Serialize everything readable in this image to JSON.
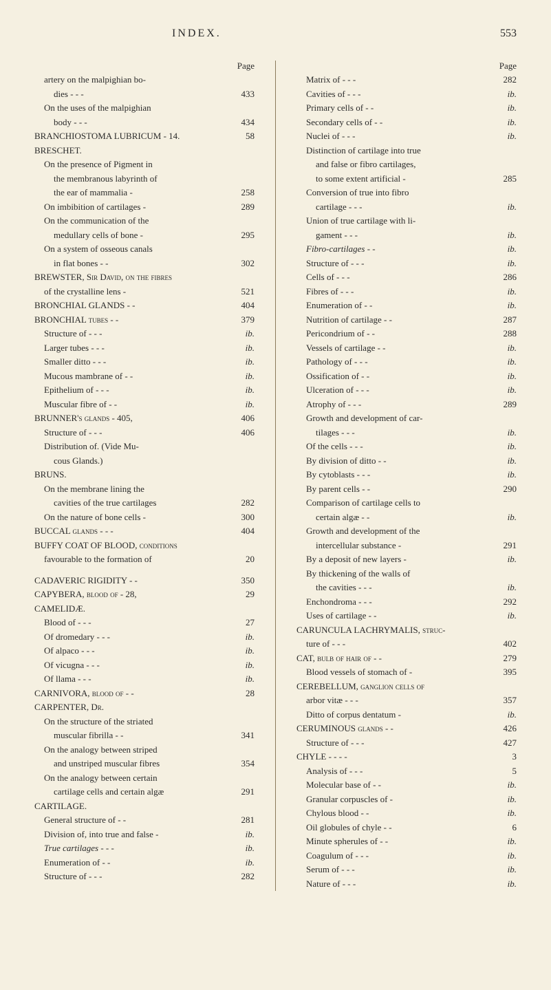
{
  "page_number": "553",
  "header_title": "INDEX.",
  "columns": {
    "left": {
      "page_label": "Page",
      "entries": [
        {
          "text": "artery on the malpighian bo-",
          "page": "",
          "indent": 1,
          "italic": false
        },
        {
          "text": "dies - - -",
          "page": "433",
          "indent": 2,
          "italic": false
        },
        {
          "text": "On the uses of the malpighian",
          "page": "",
          "indent": 1,
          "italic": false
        },
        {
          "text": "body - - -",
          "page": "434",
          "indent": 2,
          "italic": false
        },
        {
          "text": "BRANCHIOSTOMA LUBRICUM - 14.",
          "page": "58",
          "indent": 0,
          "smallcaps": true
        },
        {
          "text": "BRESCHET.",
          "page": "",
          "indent": 0,
          "smallcaps": true
        },
        {
          "text": "On the presence of Pigment in",
          "page": "",
          "indent": 1,
          "italic": false
        },
        {
          "text": "the membranous labyrinth of",
          "page": "",
          "indent": 2,
          "italic": false
        },
        {
          "text": "the ear of mammalia -",
          "page": "258",
          "indent": 2,
          "italic": false
        },
        {
          "text": "On imbibition of cartilages -",
          "page": "289",
          "indent": 1,
          "italic": false
        },
        {
          "text": "On the communication of the",
          "page": "",
          "indent": 1,
          "italic": false
        },
        {
          "text": "medullary cells of bone -",
          "page": "295",
          "indent": 2,
          "italic": false
        },
        {
          "text": "On a system of osseous canals",
          "page": "",
          "indent": 1,
          "italic": false
        },
        {
          "text": "in flat bones - -",
          "page": "302",
          "indent": 2,
          "italic": false
        },
        {
          "text": "BREWSTER, Sir David, on the fibres",
          "page": "",
          "indent": 0,
          "smallcaps": true
        },
        {
          "text": "of the crystalline lens -",
          "page": "521",
          "indent": 1,
          "italic": false
        },
        {
          "text": "BRONCHIAL GLANDS - -",
          "page": "404",
          "indent": 0,
          "smallcaps": true
        },
        {
          "text": "BRONCHIAL tubes - -",
          "page": "379",
          "indent": 0,
          "smallcaps": true
        },
        {
          "text": "Structure of - - -",
          "page": "ib.",
          "indent": 1,
          "page_italic": true
        },
        {
          "text": "Larger tubes - - -",
          "page": "ib.",
          "indent": 1,
          "page_italic": true
        },
        {
          "text": "Smaller ditto - - -",
          "page": "ib.",
          "indent": 1,
          "page_italic": true
        },
        {
          "text": "Mucous mambrane of - -",
          "page": "ib.",
          "indent": 1,
          "page_italic": true
        },
        {
          "text": "Epithelium of - - -",
          "page": "ib.",
          "indent": 1,
          "page_italic": true
        },
        {
          "text": "Muscular fibre of - -",
          "page": "ib.",
          "indent": 1,
          "page_italic": true
        },
        {
          "text": "BRUNNER's glands - 405,",
          "page": "406",
          "indent": 0,
          "smallcaps": true
        },
        {
          "text": "Structure of - - -",
          "page": "406",
          "indent": 1,
          "italic": false
        },
        {
          "text": "Distribution of. (Vide Mu-",
          "page": "",
          "indent": 1,
          "italic": false
        },
        {
          "text": "cous Glands.)",
          "page": "",
          "indent": 2,
          "italic": false
        },
        {
          "text": "BRUNS.",
          "page": "",
          "indent": 0,
          "smallcaps": true
        },
        {
          "text": "On the membrane lining the",
          "page": "",
          "indent": 1,
          "italic": false
        },
        {
          "text": "cavities of the true cartilages",
          "page": "282",
          "indent": 2,
          "italic": false
        },
        {
          "text": "On the nature of bone cells -",
          "page": "300",
          "indent": 1,
          "italic": false
        },
        {
          "text": "BUCCAL glands - - -",
          "page": "404",
          "indent": 0,
          "smallcaps": true
        },
        {
          "text": "BUFFY COAT OF BLOOD, conditions",
          "page": "",
          "indent": 0,
          "smallcaps": true
        },
        {
          "text": "favourable to the formation of",
          "page": "20",
          "indent": 1,
          "italic": false
        },
        {
          "text": "",
          "page": "",
          "indent": 0,
          "spacer": true
        },
        {
          "text": "CADAVERIC RIGIDITY - -",
          "page": "350",
          "indent": 0,
          "smallcaps": true
        },
        {
          "text": "CAPYBERA, blood of - 28,",
          "page": "29",
          "indent": 0,
          "smallcaps": true
        },
        {
          "text": "CAMELIDÆ.",
          "page": "",
          "indent": 0,
          "smallcaps": true
        },
        {
          "text": "Blood of - - -",
          "page": "27",
          "indent": 1,
          "italic": false
        },
        {
          "text": "Of dromedary - - -",
          "page": "ib.",
          "indent": 1,
          "page_italic": true
        },
        {
          "text": "Of alpaco - - -",
          "page": "ib.",
          "indent": 1,
          "page_italic": true
        },
        {
          "text": "Of vicugna - - -",
          "page": "ib.",
          "indent": 1,
          "page_italic": true
        },
        {
          "text": "Of llama - - -",
          "page": "ib.",
          "indent": 1,
          "page_italic": true
        },
        {
          "text": "CARNIVORA, blood of - -",
          "page": "28",
          "indent": 0,
          "smallcaps": true
        },
        {
          "text": "CARPENTER, Dr.",
          "page": "",
          "indent": 0,
          "smallcaps": true
        },
        {
          "text": "On the structure of the striated",
          "page": "",
          "indent": 1,
          "italic": false
        },
        {
          "text": "muscular fibrilla - -",
          "page": "341",
          "indent": 2,
          "italic": false
        },
        {
          "text": "On the analogy between striped",
          "page": "",
          "indent": 1,
          "italic": false
        },
        {
          "text": "and unstriped muscular fibres",
          "page": "354",
          "indent": 2,
          "italic": false
        },
        {
          "text": "On the analogy between certain",
          "page": "",
          "indent": 1,
          "italic": false
        },
        {
          "text": "cartilage cells and certain algæ",
          "page": "291",
          "indent": 2,
          "italic": false
        },
        {
          "text": "CARTILAGE.",
          "page": "",
          "indent": 0,
          "smallcaps": true
        },
        {
          "text": "General structure of - -",
          "page": "281",
          "indent": 1,
          "italic": false
        },
        {
          "text": "Division of, into true and false -",
          "page": "ib.",
          "indent": 1,
          "page_italic": true
        },
        {
          "text": "True cartilages - - -",
          "page": "ib.",
          "indent": 1,
          "text_italic": true,
          "page_italic": true
        },
        {
          "text": "Enumeration of - -",
          "page": "ib.",
          "indent": 1,
          "page_italic": true
        },
        {
          "text": "Structure of - - -",
          "page": "282",
          "indent": 1,
          "italic": false
        }
      ]
    },
    "right": {
      "page_label": "Page",
      "entries": [
        {
          "text": "Matrix of - - -",
          "page": "282",
          "indent": 1,
          "italic": false
        },
        {
          "text": "Cavities of - - -",
          "page": "ib.",
          "indent": 1,
          "page_italic": true
        },
        {
          "text": "Primary cells of - -",
          "page": "ib.",
          "indent": 1,
          "page_italic": true
        },
        {
          "text": "Secondary cells of - -",
          "page": "ib.",
          "indent": 1,
          "page_italic": true
        },
        {
          "text": "Nuclei of - - -",
          "page": "ib.",
          "indent": 1,
          "page_italic": true
        },
        {
          "text": "Distinction of cartilage into true",
          "page": "",
          "indent": 1,
          "italic": false
        },
        {
          "text": "and false or fibro cartilages,",
          "page": "",
          "indent": 2,
          "italic": false
        },
        {
          "text": "to some extent artificial -",
          "page": "285",
          "indent": 2,
          "italic": false
        },
        {
          "text": "Conversion of true into fibro",
          "page": "",
          "indent": 1,
          "italic": false
        },
        {
          "text": "cartilage - - -",
          "page": "ib.",
          "indent": 2,
          "page_italic": true
        },
        {
          "text": "Union of true cartilage with li-",
          "page": "",
          "indent": 1,
          "italic": false
        },
        {
          "text": "gament - - -",
          "page": "ib.",
          "indent": 2,
          "page_italic": true
        },
        {
          "text": "Fibro-cartilages - -",
          "page": "ib.",
          "indent": 1,
          "text_italic": true,
          "page_italic": true
        },
        {
          "text": "Structure of - - -",
          "page": "ib.",
          "indent": 1,
          "page_italic": true
        },
        {
          "text": "Cells of - - -",
          "page": "286",
          "indent": 1,
          "italic": false
        },
        {
          "text": "Fibres of - - -",
          "page": "ib.",
          "indent": 1,
          "page_italic": true
        },
        {
          "text": "Enumeration of - -",
          "page": "ib.",
          "indent": 1,
          "page_italic": true
        },
        {
          "text": "Nutrition of cartilage - -",
          "page": "287",
          "indent": 1,
          "italic": false
        },
        {
          "text": "Pericondrium of - -",
          "page": "288",
          "indent": 1,
          "italic": false
        },
        {
          "text": "Vessels of cartilage - -",
          "page": "ib.",
          "indent": 1,
          "page_italic": true
        },
        {
          "text": "Pathology of - - -",
          "page": "ib.",
          "indent": 1,
          "page_italic": true
        },
        {
          "text": "Ossification of - -",
          "page": "ib.",
          "indent": 1,
          "page_italic": true
        },
        {
          "text": "Ulceration of - - -",
          "page": "ib.",
          "indent": 1,
          "page_italic": true
        },
        {
          "text": "Atrophy of - - -",
          "page": "289",
          "indent": 1,
          "italic": false
        },
        {
          "text": "Growth and development of car-",
          "page": "",
          "indent": 1,
          "italic": false
        },
        {
          "text": "tilages - - -",
          "page": "ib.",
          "indent": 2,
          "page_italic": true
        },
        {
          "text": "Of the cells - - -",
          "page": "ib.",
          "indent": 1,
          "page_italic": true
        },
        {
          "text": "By division of ditto - -",
          "page": "ib.",
          "indent": 1,
          "page_italic": true
        },
        {
          "text": "By cytoblasts - - -",
          "page": "ib.",
          "indent": 1,
          "page_italic": true
        },
        {
          "text": "By parent cells - -",
          "page": "290",
          "indent": 1,
          "italic": false
        },
        {
          "text": "Comparison of cartilage cells to",
          "page": "",
          "indent": 1,
          "italic": false
        },
        {
          "text": "certain algæ - -",
          "page": "ib.",
          "indent": 2,
          "page_italic": true
        },
        {
          "text": "Growth and development of the",
          "page": "",
          "indent": 1,
          "italic": false
        },
        {
          "text": "intercellular substance -",
          "page": "291",
          "indent": 2,
          "italic": false
        },
        {
          "text": "By a deposit of new layers -",
          "page": "ib.",
          "indent": 1,
          "page_italic": true
        },
        {
          "text": "By thickening of the walls of",
          "page": "",
          "indent": 1,
          "italic": false
        },
        {
          "text": "the cavities - - -",
          "page": "ib.",
          "indent": 2,
          "page_italic": true
        },
        {
          "text": "Enchondroma - - -",
          "page": "292",
          "indent": 1,
          "italic": false
        },
        {
          "text": "Uses of cartilage - -",
          "page": "ib.",
          "indent": 1,
          "page_italic": true
        },
        {
          "text": "CARUNCULA LACHRYMALIS, struc-",
          "page": "",
          "indent": 0,
          "smallcaps": true
        },
        {
          "text": "ture of - - -",
          "page": "402",
          "indent": 1,
          "italic": false
        },
        {
          "text": "CAT, bulb of hair of - -",
          "page": "279",
          "indent": 0,
          "smallcaps": true
        },
        {
          "text": "Blood vessels of stomach of -",
          "page": "395",
          "indent": 1,
          "italic": false
        },
        {
          "text": "CEREBELLUM, ganglion cells of",
          "page": "",
          "indent": 0,
          "smallcaps": true
        },
        {
          "text": "arbor vitæ - - -",
          "page": "357",
          "indent": 1,
          "italic": false
        },
        {
          "text": "Ditto of corpus dentatum -",
          "page": "ib.",
          "indent": 1,
          "page_italic": true
        },
        {
          "text": "CERUMINOUS glands - -",
          "page": "426",
          "indent": 0,
          "smallcaps": true
        },
        {
          "text": "Structure of - - -",
          "page": "427",
          "indent": 1,
          "italic": false
        },
        {
          "text": "CHYLE - - - -",
          "page": "3",
          "indent": 0,
          "smallcaps": true
        },
        {
          "text": "Analysis of - - -",
          "page": "5",
          "indent": 1,
          "italic": false
        },
        {
          "text": "Molecular base of - -",
          "page": "ib.",
          "indent": 1,
          "page_italic": true
        },
        {
          "text": "Granular corpuscles of -",
          "page": "ib.",
          "indent": 1,
          "page_italic": true
        },
        {
          "text": "Chylous blood - -",
          "page": "ib.",
          "indent": 1,
          "page_italic": true
        },
        {
          "text": "Oil globules of chyle - -",
          "page": "6",
          "indent": 1,
          "italic": false
        },
        {
          "text": "Minute spherules of - -",
          "page": "ib.",
          "indent": 1,
          "page_italic": true
        },
        {
          "text": "Coagulum of - - -",
          "page": "ib.",
          "indent": 1,
          "page_italic": true
        },
        {
          "text": "Serum of - - -",
          "page": "ib.",
          "indent": 1,
          "page_italic": true
        },
        {
          "text": "Nature of - - -",
          "page": "ib.",
          "indent": 1,
          "page_italic": true
        }
      ]
    }
  },
  "style": {
    "background_color": "#f5f0e1",
    "text_color": "#2a2a2a",
    "font_family": "Times New Roman",
    "base_font_size": 14,
    "entry_font_size": 13,
    "header_font_size": 16,
    "line_height": 1.5,
    "divider_color": "#8a7a5a"
  }
}
